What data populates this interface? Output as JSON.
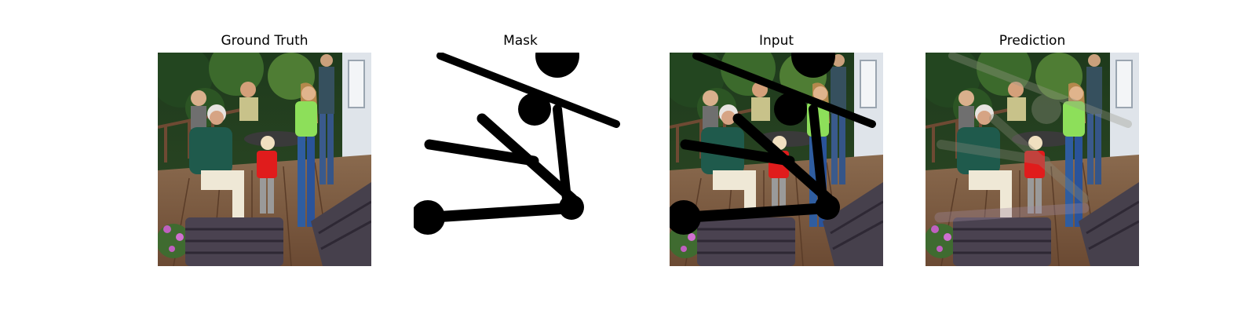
{
  "panels": [
    {
      "id": "ground-truth",
      "title": "Ground Truth"
    },
    {
      "id": "mask",
      "title": "Mask"
    },
    {
      "id": "input",
      "title": "Input"
    },
    {
      "id": "prediction",
      "title": "Prediction"
    }
  ]
}
